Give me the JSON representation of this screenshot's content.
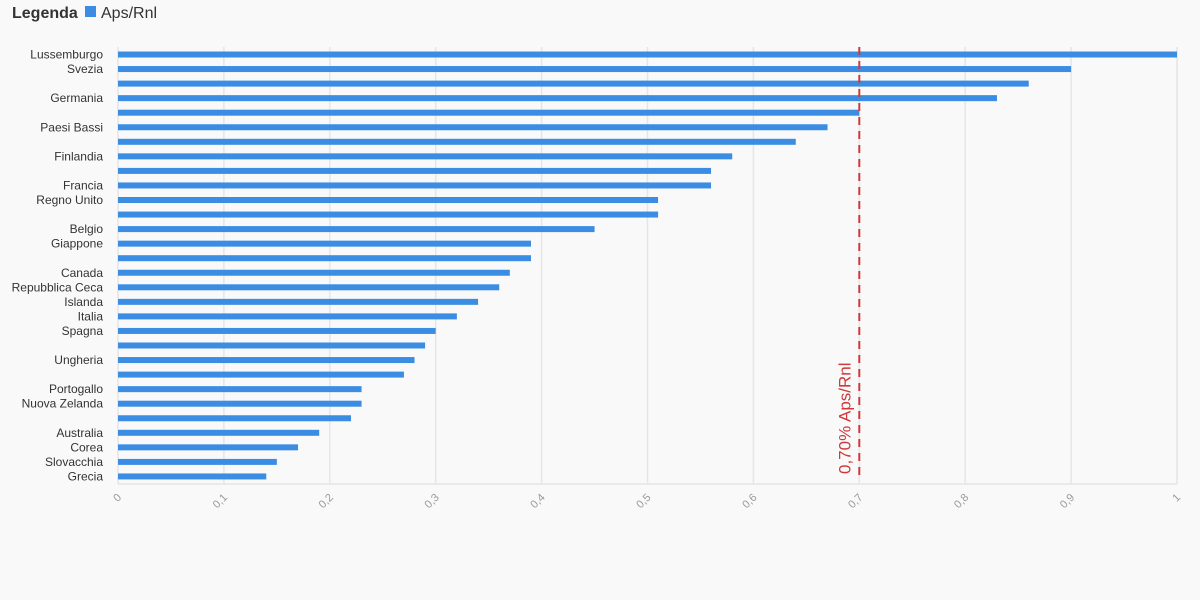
{
  "legend": {
    "title": "Legenda",
    "series_label": "Aps/Rnl"
  },
  "colors": {
    "bar": "#3b8de3",
    "reference": "#d0393b",
    "grid": "#e6e6e6",
    "background": "#f9f9f9"
  },
  "chart_data": {
    "type": "bar",
    "orientation": "horizontal",
    "xlim": [
      0,
      1
    ],
    "x_ticks": [
      "0",
      "0,1",
      "0,2",
      "0,3",
      "0,4",
      "0,5",
      "0,6",
      "0,7",
      "0,8",
      "0,9",
      "1"
    ],
    "grid": true,
    "legend_position": "top-left",
    "categories": [
      "Lussemburgo",
      "Svezia",
      "",
      "Germania",
      "",
      "Paesi Bassi",
      "",
      "Finlandia",
      "",
      "Francia",
      "Regno Unito",
      "",
      "Belgio",
      "Giappone",
      "",
      "Canada",
      "Repubblica Ceca",
      "Islanda",
      "Italia",
      "Spagna",
      "",
      "Ungheria",
      "",
      "Portogallo",
      "Nuova Zelanda",
      "",
      "Australia",
      "Corea",
      "Slovacchia",
      "Grecia"
    ],
    "series": [
      {
        "name": "Aps/Rnl",
        "values": [
          1.0,
          0.9,
          0.86,
          0.83,
          0.7,
          0.67,
          0.64,
          0.58,
          0.56,
          0.56,
          0.51,
          0.51,
          0.45,
          0.39,
          0.39,
          0.37,
          0.36,
          0.34,
          0.32,
          0.3,
          0.29,
          0.28,
          0.27,
          0.23,
          0.23,
          0.22,
          0.19,
          0.17,
          0.15,
          0.14
        ]
      }
    ],
    "reference_line": {
      "value": 0.7,
      "label": "0,70% Aps/Rnl"
    }
  }
}
